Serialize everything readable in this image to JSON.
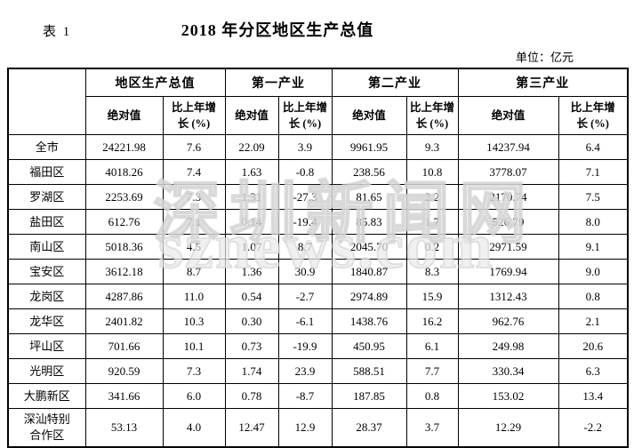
{
  "page": {
    "table_label": "表 1",
    "title": "2018 年分区地区生产总值",
    "unit_note": "单位：亿元"
  },
  "watermark": {
    "line1": "深圳新闻网",
    "line2": "sznews.com"
  },
  "table": {
    "groups": [
      {
        "label": "地区生产总值"
      },
      {
        "label": "第一产业"
      },
      {
        "label": "第二产业"
      },
      {
        "label": "第三产业"
      }
    ],
    "subheaders": {
      "absolute": "绝对值",
      "growth": "比上年增\n长 (%)"
    },
    "rows": [
      {
        "district": "全市",
        "values": [
          "24221.98",
          "7.6",
          "22.09",
          "3.9",
          "9961.95",
          "9.3",
          "14237.94",
          "6.4"
        ]
      },
      {
        "district": "福田区",
        "values": [
          "4018.26",
          "7.4",
          "1.63",
          "-0.8",
          "238.56",
          "10.8",
          "3778.07",
          "7.1"
        ]
      },
      {
        "district": "罗湖区",
        "values": [
          "2253.69",
          "7.3",
          "1.31",
          "-27.3",
          "81.65",
          "2.2",
          "2170.74",
          "7.5"
        ]
      },
      {
        "district": "盐田区",
        "values": [
          "612.76",
          "7.1",
          "0.14",
          "-19.4",
          "85.83",
          "1.7",
          "526.79",
          "8.0"
        ]
      },
      {
        "district": "南山区",
        "values": [
          "5018.36",
          "4.5",
          "1.07",
          "8.7",
          "2045.70",
          "0.2",
          "2971.59",
          "9.1"
        ]
      },
      {
        "district": "宝安区",
        "values": [
          "3612.18",
          "8.7",
          "1.36",
          "30.9",
          "1840.87",
          "8.3",
          "1769.94",
          "9.0"
        ]
      },
      {
        "district": "龙岗区",
        "values": [
          "4287.86",
          "11.0",
          "0.54",
          "-2.7",
          "2974.89",
          "15.9",
          "1312.43",
          "0.8"
        ]
      },
      {
        "district": "龙华区",
        "values": [
          "2401.82",
          "10.3",
          "0.30",
          "-6.1",
          "1438.76",
          "16.2",
          "962.76",
          "2.1"
        ]
      },
      {
        "district": "坪山区",
        "values": [
          "701.66",
          "10.1",
          "0.73",
          "-19.9",
          "450.95",
          "6.1",
          "249.98",
          "20.6"
        ]
      },
      {
        "district": "光明区",
        "values": [
          "920.59",
          "7.3",
          "1.74",
          "23.9",
          "588.51",
          "7.7",
          "330.34",
          "6.3"
        ]
      },
      {
        "district": "大鹏新区",
        "values": [
          "341.66",
          "6.0",
          "0.78",
          "-8.7",
          "187.85",
          "0.8",
          "153.02",
          "13.4"
        ]
      },
      {
        "district": "深汕特别\n合作区",
        "values": [
          "53.13",
          "4.0",
          "12.47",
          "12.9",
          "28.37",
          "3.7",
          "12.29",
          "-2.2"
        ]
      }
    ]
  }
}
